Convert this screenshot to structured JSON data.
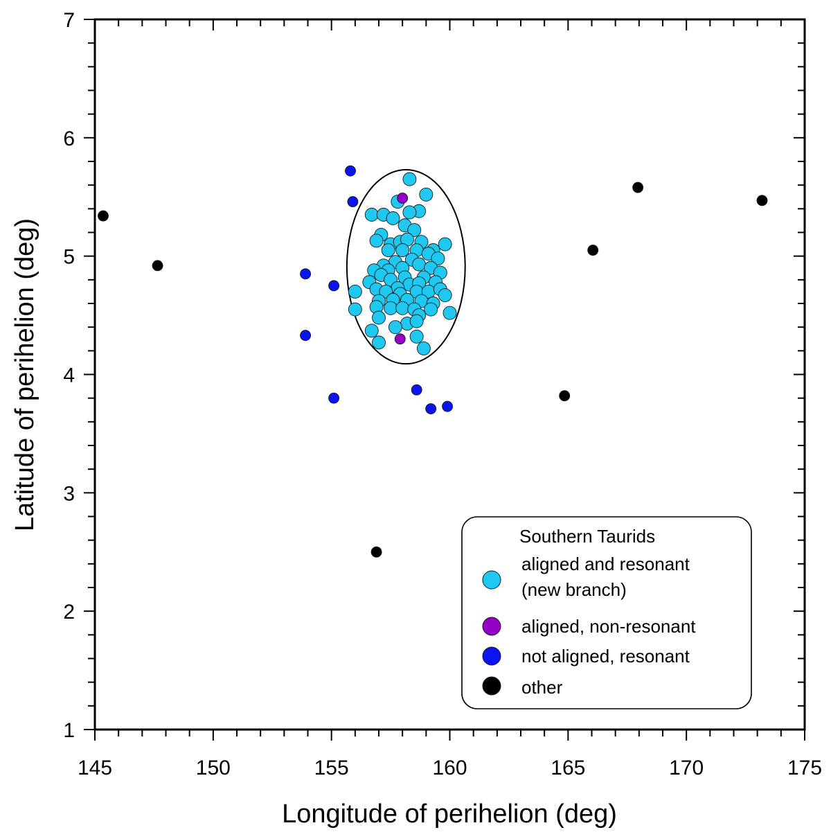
{
  "chart_data": {
    "type": "scatter",
    "title": "",
    "xlabel": "Longitude of perihelion (deg)",
    "ylabel": "Latitude of perihelion (deg)",
    "xlim": [
      145,
      175
    ],
    "ylim": [
      1,
      7
    ],
    "xticks": [
      145,
      150,
      155,
      160,
      165,
      170,
      175
    ],
    "yticks": [
      1,
      2,
      3,
      4,
      5,
      6,
      7
    ],
    "xtick_labels": [
      "145",
      "150",
      "155",
      "160",
      "165",
      "170",
      "175"
    ],
    "ytick_labels": [
      "1",
      "2",
      "3",
      "4",
      "5",
      "6",
      "7"
    ],
    "grid": false,
    "legend": {
      "title": "Southern Taurids",
      "position": "bottom-right"
    },
    "series": [
      {
        "name": "aligned and resonant",
        "label_lines": [
          "aligned and resonant",
          "(new branch)"
        ],
        "color": "#1ec8f0",
        "marker": "large-circle",
        "points": [
          [
            158.3,
            5.65
          ],
          [
            159.0,
            5.52
          ],
          [
            157.8,
            5.46
          ],
          [
            158.7,
            5.38
          ],
          [
            156.7,
            5.35
          ],
          [
            157.2,
            5.35
          ],
          [
            158.3,
            5.37
          ],
          [
            157.6,
            5.32
          ],
          [
            158.1,
            5.26
          ],
          [
            158.5,
            5.22
          ],
          [
            157.1,
            5.18
          ],
          [
            156.9,
            5.13
          ],
          [
            157.5,
            5.1
          ],
          [
            157.9,
            5.12
          ],
          [
            158.2,
            5.14
          ],
          [
            158.8,
            5.12
          ],
          [
            159.3,
            5.05
          ],
          [
            159.8,
            5.1
          ],
          [
            157.4,
            5.05
          ],
          [
            158.0,
            5.05
          ],
          [
            158.6,
            5.05
          ],
          [
            159.1,
            5.02
          ],
          [
            159.5,
            4.98
          ],
          [
            158.4,
            4.97
          ],
          [
            157.7,
            4.95
          ],
          [
            157.2,
            4.92
          ],
          [
            156.8,
            4.88
          ],
          [
            157.4,
            4.88
          ],
          [
            158.0,
            4.9
          ],
          [
            158.7,
            4.93
          ],
          [
            159.2,
            4.9
          ],
          [
            159.6,
            4.86
          ],
          [
            157.1,
            4.84
          ],
          [
            156.6,
            4.78
          ],
          [
            157.5,
            4.8
          ],
          [
            158.1,
            4.82
          ],
          [
            158.9,
            4.82
          ],
          [
            159.4,
            4.78
          ],
          [
            158.3,
            4.76
          ],
          [
            158.7,
            4.77
          ],
          [
            157.8,
            4.73
          ],
          [
            156.0,
            4.7
          ],
          [
            156.9,
            4.72
          ],
          [
            157.3,
            4.7
          ],
          [
            157.9,
            4.68
          ],
          [
            158.6,
            4.7
          ],
          [
            159.1,
            4.7
          ],
          [
            159.6,
            4.72
          ],
          [
            157.0,
            4.62
          ],
          [
            157.6,
            4.63
          ],
          [
            158.2,
            4.63
          ],
          [
            158.8,
            4.62
          ],
          [
            159.3,
            4.6
          ],
          [
            159.8,
            4.67
          ],
          [
            156.9,
            4.57
          ],
          [
            157.5,
            4.56
          ],
          [
            158.0,
            4.56
          ],
          [
            158.5,
            4.55
          ],
          [
            159.2,
            4.55
          ],
          [
            156.0,
            4.55
          ],
          [
            160.0,
            4.52
          ],
          [
            158.7,
            4.5
          ],
          [
            157.0,
            4.48
          ],
          [
            158.2,
            4.43
          ],
          [
            158.6,
            4.45
          ],
          [
            157.7,
            4.4
          ],
          [
            156.7,
            4.37
          ],
          [
            158.6,
            4.32
          ],
          [
            157.0,
            4.27
          ],
          [
            158.9,
            4.22
          ]
        ]
      },
      {
        "name": "aligned, non-resonant",
        "label_lines": [
          "aligned, non-resonant"
        ],
        "color": "#9400c8",
        "marker": "circle",
        "points": [
          [
            158.0,
            5.49
          ],
          [
            157.9,
            4.3
          ]
        ]
      },
      {
        "name": "not aligned, resonant",
        "label_lines": [
          "not aligned, resonant"
        ],
        "color": "#0a14f0",
        "marker": "circle",
        "points": [
          [
            155.8,
            5.72
          ],
          [
            155.9,
            5.46
          ],
          [
            153.9,
            4.85
          ],
          [
            155.1,
            4.75
          ],
          [
            153.9,
            4.33
          ],
          [
            155.1,
            3.8
          ],
          [
            158.6,
            3.87
          ],
          [
            159.9,
            3.73
          ],
          [
            159.2,
            3.71
          ]
        ]
      },
      {
        "name": "other",
        "label_lines": [
          "other"
        ],
        "color": "#000000",
        "marker": "circle",
        "points": [
          [
            145.35,
            5.34
          ],
          [
            147.65,
            4.92
          ],
          [
            156.9,
            2.5
          ],
          [
            164.85,
            3.82
          ],
          [
            166.05,
            5.05
          ],
          [
            167.95,
            5.58
          ],
          [
            173.2,
            5.47
          ]
        ]
      }
    ],
    "annotations": [
      {
        "type": "ellipse",
        "description": "encloses the aligned and resonant cluster",
        "center": [
          158.15,
          4.91
        ],
        "radius_x": 2.5,
        "radius_y": 0.82
      }
    ]
  }
}
